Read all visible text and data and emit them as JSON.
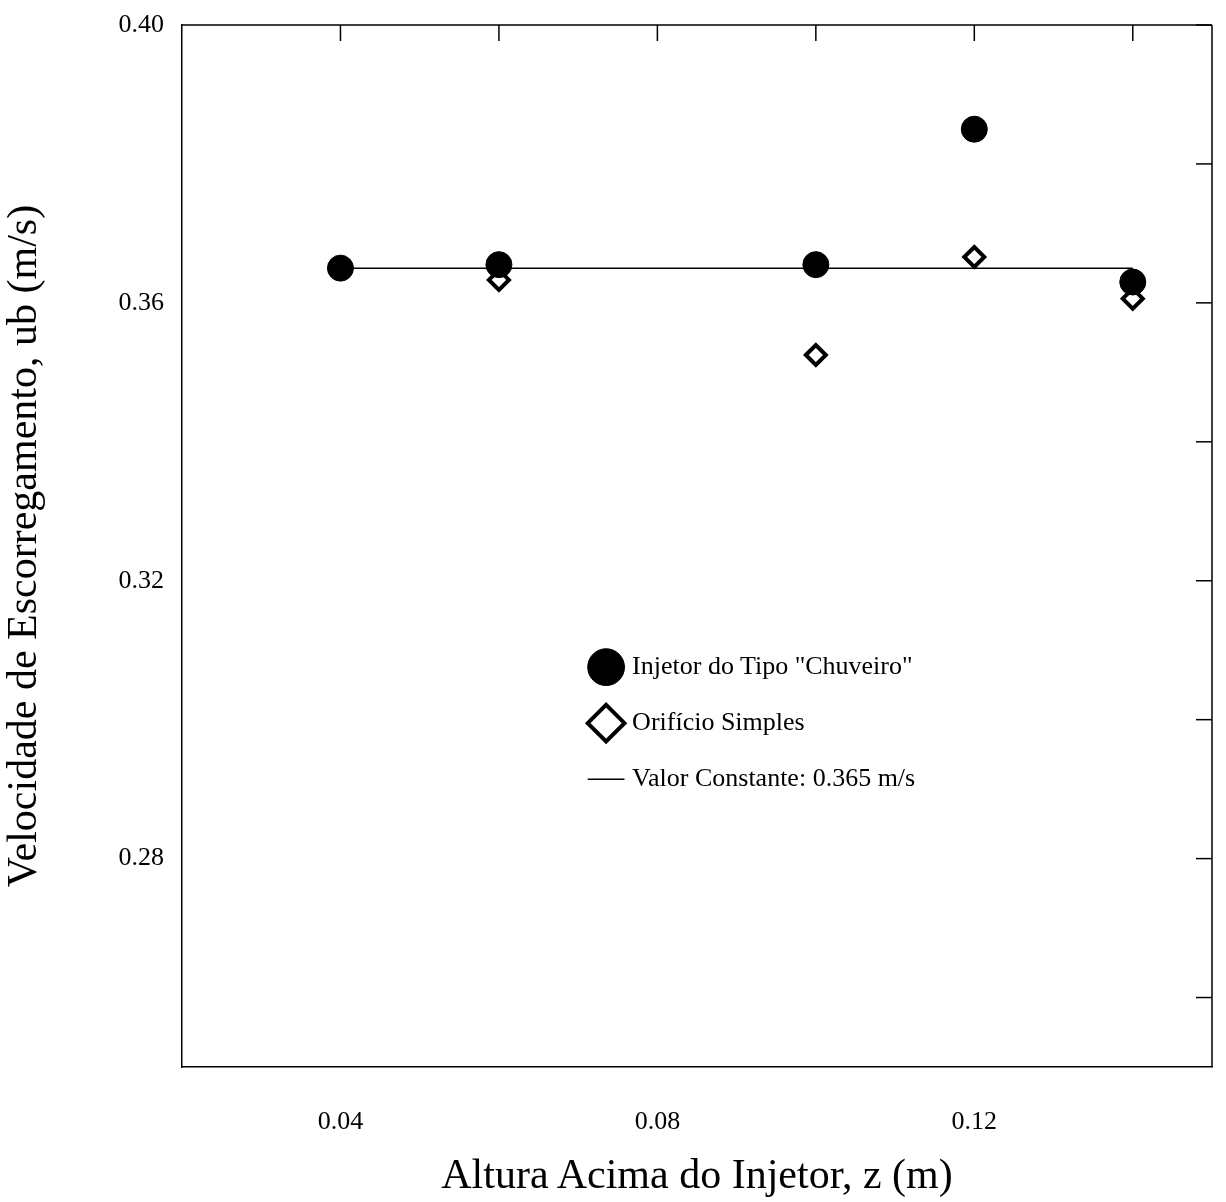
{
  "chart_data": {
    "type": "scatter",
    "xlabel": "Altura Acima do Injetor, z (m)",
    "ylabel": "Velocidade de Escorregamento, ub (m/s)",
    "xlim": [
      0.02,
      0.15
    ],
    "ylim": [
      0.25,
      0.4
    ],
    "xticks": [
      0.04,
      {
        "value": 0.06,
        "label": null
      },
      0.08,
      {
        "value": 0.1,
        "label": null
      },
      0.12,
      {
        "value": 0.14,
        "label": null
      }
    ],
    "yticks": [
      {
        "value": 0.26,
        "label": null
      },
      0.28,
      {
        "value": 0.3,
        "label": null
      },
      0.32,
      {
        "value": 0.34,
        "label": null
      },
      0.36,
      {
        "value": 0.38,
        "label": null
      },
      {
        "value": 0.4,
        "label": "0.40"
      }
    ],
    "grid": false,
    "legend": "right",
    "series": [
      {
        "name": "Injetor do Tipo \"Chuveiro\"",
        "marker": "circle",
        "color": "#000000",
        "x": [
          0.04,
          0.06,
          0.1,
          0.12,
          0.14
        ],
        "values": [
          0.365,
          0.3655,
          0.3655,
          0.385,
          0.363
        ]
      },
      {
        "name": "Orifício Simples",
        "marker": "diamond",
        "color": "#000000",
        "x": [
          0.06,
          0.1,
          0.12,
          0.14
        ],
        "values": [
          0.3633,
          0.3525,
          0.3666,
          0.3606
        ]
      },
      {
        "name": "Valor Constante: 0.365 m/s",
        "type": "line",
        "marker": "none",
        "line_style": "solid",
        "color": "#000000",
        "x": [
          0.04,
          0.14
        ],
        "values": [
          0.365,
          0.365
        ]
      }
    ]
  }
}
